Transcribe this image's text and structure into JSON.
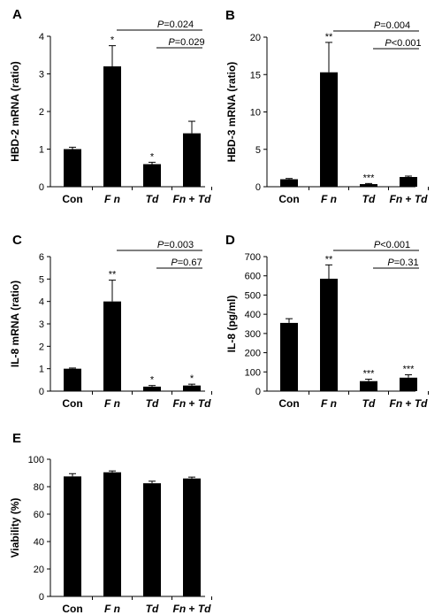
{
  "chart_data": [
    {
      "panel": "A",
      "type": "bar",
      "ylabel": "HBD-2 mRNA  (ratio)",
      "categories": [
        "Con",
        "F n",
        "Td",
        "Fn + Td"
      ],
      "values": [
        1.0,
        3.2,
        0.6,
        1.42
      ],
      "errors": [
        0.05,
        0.55,
        0.05,
        0.32
      ],
      "significance": [
        "",
        "*",
        "*",
        ""
      ],
      "ylim": [
        0,
        4
      ],
      "yticks": [
        0,
        1,
        2,
        3,
        4
      ],
      "comparisons": [
        {
          "label_prefix": "P",
          "label_rest": "=0.024",
          "from": 1,
          "to": 3
        },
        {
          "label_prefix": "P",
          "label_rest": "=0.029",
          "from": 2,
          "to": 3
        }
      ]
    },
    {
      "panel": "B",
      "type": "bar",
      "ylabel": "HBD-3 mRNA  (ratio)",
      "categories": [
        "Con",
        "F n",
        "Td",
        "Fn + Td"
      ],
      "values": [
        1.0,
        15.3,
        0.35,
        1.3
      ],
      "errors": [
        0.1,
        4.0,
        0.08,
        0.12
      ],
      "significance": [
        "",
        "**",
        "***",
        ""
      ],
      "ylim": [
        0,
        20
      ],
      "yticks": [
        0,
        5,
        10,
        15,
        20
      ],
      "comparisons": [
        {
          "label_prefix": "P",
          "label_rest": "=0.004",
          "from": 1,
          "to": 3
        },
        {
          "label_prefix": "P",
          "label_rest": "<0.001",
          "from": 2,
          "to": 3
        }
      ]
    },
    {
      "panel": "C",
      "type": "bar",
      "ylabel": "IL-8 mRNA  (ratio)",
      "categories": [
        "Con",
        "F n",
        "Td",
        "Fn + Td"
      ],
      "values": [
        1.0,
        4.0,
        0.2,
        0.25
      ],
      "errors": [
        0.03,
        0.95,
        0.05,
        0.06
      ],
      "significance": [
        "",
        "**",
        "*",
        "*"
      ],
      "ylim": [
        0,
        6
      ],
      "yticks": [
        0,
        1,
        2,
        3,
        4,
        5,
        6
      ],
      "comparisons": [
        {
          "label_prefix": "P",
          "label_rest": "=0.003",
          "from": 1,
          "to": 3
        },
        {
          "label_prefix": "P",
          "label_rest": "=0.67",
          "from": 2,
          "to": 3
        }
      ]
    },
    {
      "panel": "D",
      "type": "bar",
      "ylabel": "IL-8 (pg/ml)",
      "categories": [
        "Con",
        "F n",
        "Td",
        "Fn + Td"
      ],
      "values": [
        355,
        585,
        52,
        70
      ],
      "errors": [
        22,
        72,
        10,
        15
      ],
      "significance": [
        "",
        "**",
        "***",
        "***"
      ],
      "ylim": [
        0,
        700
      ],
      "yticks": [
        0,
        100,
        200,
        300,
        400,
        500,
        600,
        700
      ],
      "comparisons": [
        {
          "label_prefix": "P",
          "label_rest": "<0.001",
          "from": 1,
          "to": 3
        },
        {
          "label_prefix": "P",
          "label_rest": "=0.31",
          "from": 2,
          "to": 3
        }
      ]
    },
    {
      "panel": "E",
      "type": "bar",
      "ylabel": "Viability (%)",
      "categories": [
        "Con",
        "F n",
        "Td",
        "Fn + Td"
      ],
      "values": [
        87.5,
        90.5,
        82.5,
        86
      ],
      "errors": [
        2.0,
        1.0,
        1.5,
        1.0
      ],
      "significance": [
        "",
        "",
        "",
        ""
      ],
      "ylim": [
        0,
        100
      ],
      "yticks": [
        0,
        20,
        40,
        60,
        80,
        100
      ],
      "comparisons": []
    }
  ]
}
